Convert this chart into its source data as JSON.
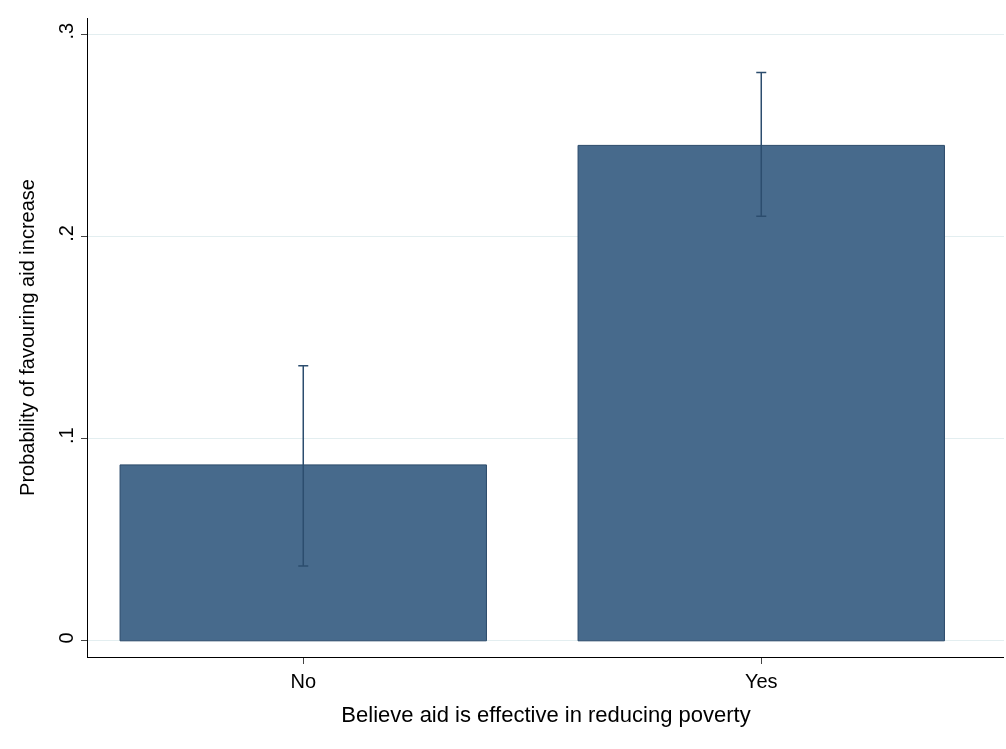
{
  "chart_data": {
    "type": "bar",
    "xlabel": "Believe aid is effective in reducing poverty",
    "ylabel": "Probability of favouring aid increase",
    "categories": [
      "No",
      "Yes"
    ],
    "values": [
      0.087,
      0.245
    ],
    "errors": [
      [
        0.037,
        0.136
      ],
      [
        0.21,
        0.281
      ]
    ],
    "color": "#476a8c",
    "ylim": [
      -0.008,
      0.308
    ],
    "yticks": [
      0,
      {
        "value": 0.1,
        "label": ".1"
      },
      {
        "value": 0.2,
        "label": ".2"
      },
      {
        "value": 0.3,
        "label": ".3"
      }
    ],
    "grid": "y",
    "legend": false
  }
}
